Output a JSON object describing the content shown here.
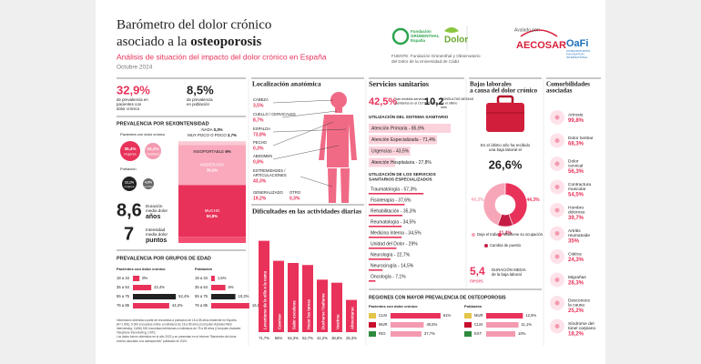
{
  "header": {
    "title_line1": "Barómetro del dolor crónico",
    "title_line2": "asociado a la ",
    "title_bold": "osteoporosis",
    "subtitle": "Análisis de situación del impacto del dolor crónico en España",
    "date": "Octubre 2024",
    "source": [
      "FUENTE: Fundación Grünenthal y Observatorio",
      "del Dolor de la Universidad de Cádiz"
    ],
    "logos": {
      "fundacion": [
        "Fundación",
        "GRÜNENTHAL",
        "España"
      ],
      "observatorio": "Dolor",
      "endorsed": "Avalado por:",
      "aecosar": "AECOSAR",
      "oafi": "OaFi",
      "oafi_sub": [
        "OSTEOARTHRITIS",
        "FOUNDATION",
        "INTERNATIONAL"
      ]
    }
  },
  "prevalence": [
    {
      "value": "32,9%",
      "text": [
        "de prevalencia en",
        "pacientes con",
        "dolor crónico"
      ]
    },
    {
      "value": "8,5%",
      "text": [
        "de prevalencia",
        "en población"
      ]
    }
  ],
  "sex": {
    "title": "PREVALENCIA POR SEXO",
    "patients": "Pacientes con dolor crónico",
    "patients_values": [
      {
        "value": "35,4%",
        "label": "mujeres"
      },
      {
        "value": "24,1%",
        "label": "hombres"
      }
    ],
    "population": "Población",
    "population_values": [
      {
        "value": "12,1%",
        "label": "mujeres"
      },
      {
        "value": "4,5%",
        "label": "hombres"
      }
    ]
  },
  "intensity": {
    "title": "INTENSIDAD",
    "levels": [
      {
        "name": "NADA ",
        "value": 0.3,
        "value_label": "0,3%"
      },
      {
        "name": "MUY POCO O POCO ",
        "value": 3.7,
        "value_label": "3,7%"
      },
      {
        "name": "MODERADO",
        "value": 39.2,
        "value_label": "39,2%"
      },
      {
        "name": "MUCHO",
        "value": 50.8,
        "value_label": "50,8%"
      },
      {
        "name": "INSOPORTABLE ",
        "value": 6,
        "value_label": "6%"
      }
    ]
  },
  "duration": {
    "value": "8,6",
    "text": [
      "Duración",
      "media dolor"
    ],
    "unit": "años"
  },
  "pain_intensity": {
    "value": "7",
    "text": [
      "Intensidad",
      "media dolor"
    ],
    "unit": "puntos"
  },
  "age": {
    "title": "PREVALENCIA POR GRUPOS DE EDAD",
    "groups": [
      {
        "name": "Pacientes con dolor crónico",
        "rows": [
          {
            "name": "18 a 34",
            "value": 8,
            "value_label": "8%"
          },
          {
            "name": "35 a 54",
            "value": 22.4,
            "value_label": "22,4%"
          },
          {
            "name": "55 a 75",
            "value": 52.4,
            "value_label": "52,4%"
          },
          {
            "name": "76 a 85",
            "value": 44.3,
            "value_label": "44,3%"
          }
        ]
      },
      {
        "name": "Población",
        "rows": [
          {
            "name": "18 a 34",
            "value": 1.5,
            "value_label": "1,5%"
          },
          {
            "name": "35 a 54",
            "value": 6,
            "value_label": "6%"
          },
          {
            "name": "55 a 75",
            "value": 10.2,
            "value_label": "10,2%"
          },
          {
            "name": "76 a 85",
            "value": 16.1,
            "value_label": "16,1%"
          }
        ]
      }
    ]
  },
  "footnote": [
    "Información obtenida a partir de encuestas a población de 18 a 85 años residente en España",
    "(N=1.000), 5.000 encuestas online a individuos de 18 a 85 años (Computer-Assisted Web",
    "Interviewing, CAWI) 500 encuestas telefónicas a individuos de 75 a 85 años (Computer-Assisted",
    "Telephone Interviewing, CATI).",
    "Los datos fueron obtenidos en el año 2023 y se presentan en el informe \"Barómetro del dolor",
    "crónico asociado a la osteoporosis\" publicado en 2024."
  ],
  "location": {
    "title": "Localización anatómica",
    "parts": [
      {
        "name": [
          "CABEZA"
        ],
        "value_label": "3,5%"
      },
      {
        "name": [
          "CUELLO / CERVICALES"
        ],
        "value_label": "8,7%"
      },
      {
        "name": [
          "ESPALDA"
        ],
        "value_label": "73,8%"
      },
      {
        "name": [
          "PECHO"
        ],
        "value_label": "0,3%"
      },
      {
        "name": [
          "ABDOMEN"
        ],
        "value_label": "0,8%"
      },
      {
        "name": [
          "EXTREMIDADES /",
          "ARTICULACIONES"
        ],
        "value_label": "43,3%"
      },
      {
        "name": [
          "GENERALIZADO"
        ],
        "value_label": "19,2%"
      },
      {
        "name": [
          "OTRO"
        ],
        "value_label": "0,3%"
      }
    ]
  },
  "difficulties": {
    "title": "Dificultades en las actividades diarias",
    "items": [
      {
        "name": "Levantarse de la silla o la cama",
        "value": 71.7,
        "value_label": "71,7%"
      },
      {
        "name": "Caminar",
        "value": 56,
        "value_label": "56%"
      },
      {
        "name": "Subir escaleras",
        "value": 54.3,
        "value_label": "54,3%"
      },
      {
        "name": "Hacer las tareas",
        "value": 52.7,
        "value_label": "52,7%"
      },
      {
        "name": "Ducharse / bañarse",
        "value": 41.2,
        "value_label": "41,2%"
      },
      {
        "name": "Vestirse",
        "value": 38.8,
        "value_label": "38,8%"
      },
      {
        "name": "Alimentarse",
        "value": 25.3,
        "value_label": "25,3%"
      }
    ]
  },
  "services": {
    "title": "Servicios sanitarios",
    "stats": [
      {
        "value": "42,5%",
        "text": [
          "han recibido servicios",
          "sanitarios en el ÚLTIMO MES"
        ]
      },
      {
        "value": "10,2",
        "text": [
          "CONSULTAS MEDIAS",
          "en el último",
          "mes"
        ]
      }
    ],
    "system": {
      "title": "UTILIZACIÓN DEL SISTEMA SANITARIO",
      "items": [
        {
          "label": "Atención Primaria - 85,9%",
          "value": 85.9
        },
        {
          "label": "Atención Especializada - 71,4%",
          "value": 71.4
        },
        {
          "label": "Urgencias - 43,5%",
          "value": 43.5
        },
        {
          "label": "Atención Hospitalaria - 27,8%",
          "value": 27.8
        }
      ]
    },
    "specialized": {
      "title": [
        "UTILIZACIÓN DE LOS SERVICIOS",
        "SANITARIOS ESPECIALIZADOS"
      ],
      "items": [
        {
          "label": "Traumatología - 57,3%",
          "value": 57.3
        },
        {
          "label": "Fisioterapia - 37,6%",
          "value": 37.6
        },
        {
          "label": "Rehabilitación - 35,3%",
          "value": 35.3
        },
        {
          "label": "Reumatología - 34,5%",
          "value": 34.5
        },
        {
          "label": "Medicina Interna - 34,5%",
          "value": 34.5
        },
        {
          "label": "Unidad del Dolor - 29%",
          "value": 29
        },
        {
          "label": "Neurología - 22,7%",
          "value": 22.7
        },
        {
          "label": "Neurocirugía - 14,5%",
          "value": 14.5
        },
        {
          "label": "Oncología - 7,1%",
          "value": 7.1
        }
      ]
    }
  },
  "leave": {
    "title": [
      "Bajas laborales",
      "a causa del dolor crónico"
    ],
    "text": [
      "En el último año ha recibido",
      "una baja laboral el"
    ],
    "value": "26,6%",
    "split": [
      {
        "name": "Mantiene su ocupación",
        "value": 44.3,
        "value_label": "44,3%"
      },
      {
        "name": "Cambia de puesto",
        "value": 11.4,
        "value_label": "11,4%"
      },
      {
        "name": "Deja el trabajo",
        "value": 44.3,
        "value_label": "44,3%"
      }
    ],
    "duration_value": "5,4",
    "duration_unit": "meses",
    "duration_text": [
      "DURACIÓN MEDIA",
      "de la baja laboral"
    ]
  },
  "comorbidities": {
    "title": [
      "Comorbilidades",
      "asociadas"
    ],
    "items": [
      {
        "name": [
          "Artrosis"
        ],
        "value_label": "99,8%"
      },
      {
        "name": [
          "Dolor lumbar"
        ],
        "value_label": "68,3%"
      },
      {
        "name": [
          "Dolor",
          "cervical"
        ],
        "value_label": "56,3%"
      },
      {
        "name": [
          "Contractura",
          "muscular"
        ],
        "value_label": "54,5%"
      },
      {
        "name": [
          "Hombro",
          "doloroso"
        ],
        "value_label": "39,7%"
      },
      {
        "name": [
          "Artritis",
          "reumatoide"
        ],
        "value_label": "35%"
      },
      {
        "name": [
          "Ciática"
        ],
        "value_label": "24,3%"
      },
      {
        "name": [
          "Migrañas"
        ],
        "value_label": "28,3%"
      },
      {
        "name": [
          "Desconoce",
          "la causa"
        ],
        "value_label": "25,2%"
      },
      {
        "name": [
          "Síndrome del",
          "túnel carpiano"
        ],
        "value_label": "18,2%"
      }
    ]
  },
  "regions": {
    "title": "REGIONES CON MAYOR PREVALENCIA DE OSTEOPOROSIS",
    "groups": [
      {
        "name": "Pacientes con dolor crónico",
        "rows": [
          {
            "name": "CLM",
            "value": 61,
            "value_label": "61%"
          },
          {
            "name": "MUR",
            "value": 40.5,
            "value_label": "40,5%"
          },
          {
            "name": "RIO",
            "value": 37.7,
            "value_label": "37,7%"
          }
        ]
      },
      {
        "name": "Población",
        "rows": [
          {
            "name": "MUR",
            "value": 12.6,
            "value_label": "12,6%"
          },
          {
            "name": "CLM",
            "value": 11.1,
            "value_label": "11,1%"
          },
          {
            "name": "EXT",
            "value": 10,
            "value_label": "10%"
          }
        ]
      }
    ]
  }
}
